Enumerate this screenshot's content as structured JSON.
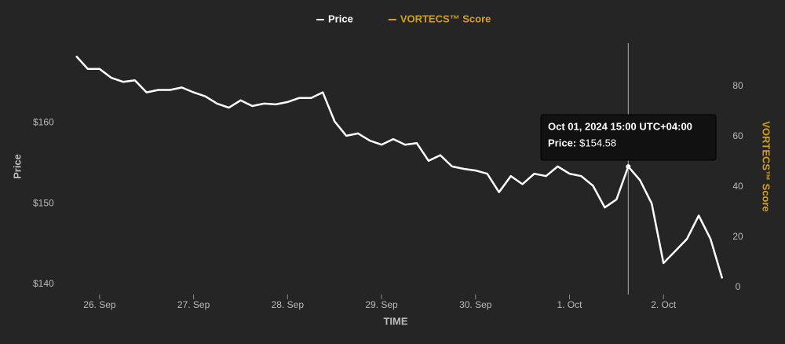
{
  "chart_data": {
    "type": "line",
    "legend": "top",
    "xlabel": "TIME",
    "ylabel": "Price",
    "y2label": "VORTECS™ Score",
    "x": [
      "2024-09-25T18:00",
      "2024-09-25T21:00",
      "2024-09-26T00:00",
      "2024-09-26T03:00",
      "2024-09-26T06:00",
      "2024-09-26T09:00",
      "2024-09-26T12:00",
      "2024-09-26T15:00",
      "2024-09-26T18:00",
      "2024-09-26T21:00",
      "2024-09-27T00:00",
      "2024-09-27T03:00",
      "2024-09-27T06:00",
      "2024-09-27T09:00",
      "2024-09-27T12:00",
      "2024-09-27T15:00",
      "2024-09-27T18:00",
      "2024-09-27T21:00",
      "2024-09-28T00:00",
      "2024-09-28T03:00",
      "2024-09-28T06:00",
      "2024-09-28T09:00",
      "2024-09-28T12:00",
      "2024-09-28T15:00",
      "2024-09-28T18:00",
      "2024-09-28T21:00",
      "2024-09-29T00:00",
      "2024-09-29T03:00",
      "2024-09-29T06:00",
      "2024-09-29T09:00",
      "2024-09-29T12:00",
      "2024-09-29T15:00",
      "2024-09-29T18:00",
      "2024-09-29T21:00",
      "2024-09-30T00:00",
      "2024-09-30T03:00",
      "2024-09-30T06:00",
      "2024-09-30T09:00",
      "2024-09-30T12:00",
      "2024-09-30T15:00",
      "2024-09-30T18:00",
      "2024-09-30T21:00",
      "2024-10-01T00:00",
      "2024-10-01T03:00",
      "2024-10-01T06:00",
      "2024-10-01T09:00",
      "2024-10-01T12:00",
      "2024-10-01T15:00",
      "2024-10-01T18:00",
      "2024-10-01T21:00",
      "2024-10-02T00:00",
      "2024-10-02T03:00",
      "2024-10-02T06:00",
      "2024-10-02T09:00",
      "2024-10-02T12:00",
      "2024-10-02T15:00"
    ],
    "series": [
      {
        "name": "Price",
        "color": "#ffffff",
        "values": [
          168.3,
          166.7,
          166.7,
          165.6,
          165.1,
          165.3,
          163.8,
          164.1,
          164.1,
          164.4,
          163.8,
          163.3,
          162.4,
          161.9,
          162.8,
          162.1,
          162.4,
          162.3,
          162.6,
          163.1,
          163.1,
          163.8,
          160.2,
          158.4,
          158.7,
          157.8,
          157.3,
          158.0,
          157.3,
          157.5,
          155.3,
          156.0,
          154.6,
          154.3,
          154.1,
          153.7,
          151.4,
          153.4,
          152.4,
          153.7,
          153.4,
          154.6,
          153.7,
          153.4,
          152.2,
          149.5,
          150.5,
          154.58,
          152.9,
          150.0,
          142.6,
          144.1,
          145.6,
          148.5,
          145.6,
          140.7
        ]
      },
      {
        "name": "VORTECS™ Score",
        "color": "#d4a017",
        "axis": "y2",
        "values": [
          null,
          null,
          null,
          null,
          null,
          null,
          null,
          null,
          null,
          null,
          null,
          null,
          null,
          null,
          null,
          null,
          null,
          null,
          null,
          null,
          null,
          null,
          null,
          null,
          null,
          null,
          null,
          null,
          null,
          null,
          null,
          null,
          null,
          null,
          null,
          null,
          null,
          null,
          null,
          null,
          null,
          null,
          null,
          null,
          null,
          null,
          null,
          null,
          null,
          null,
          null,
          null,
          null,
          null,
          null,
          null
        ]
      }
    ],
    "xlim": [
      "2024-09-25T14:36",
      "2024-10-02T17:00"
    ],
    "xticks": [
      {
        "value": "2024-09-26",
        "label": "26. Sep"
      },
      {
        "value": "2024-09-27",
        "label": "27. Sep"
      },
      {
        "value": "2024-09-28",
        "label": "28. Sep"
      },
      {
        "value": "2024-09-29",
        "label": "29. Sep"
      },
      {
        "value": "2024-09-30",
        "label": "30. Sep"
      },
      {
        "value": "2024-10-01",
        "label": "1. Oct"
      },
      {
        "value": "2024-10-02",
        "label": "2. Oct"
      }
    ],
    "ylim": [
      138.7,
      169.9
    ],
    "yticks": [
      {
        "value": 140,
        "label": "$140"
      },
      {
        "value": 150,
        "label": "$150"
      },
      {
        "value": 160,
        "label": "$160"
      }
    ],
    "y2lim": [
      -2.8,
      97.2
    ],
    "y2ticks": [
      0,
      20,
      40,
      60,
      80
    ],
    "tooltip": {
      "index": 47,
      "title": "Oct 01, 2024 15:00 UTC+04:00",
      "label": "Price:",
      "value_label": "$154.58"
    }
  }
}
